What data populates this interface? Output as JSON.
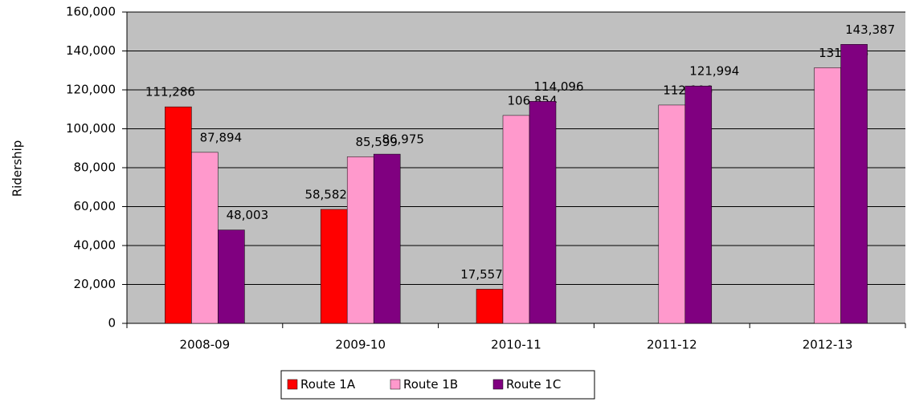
{
  "chart_data": {
    "type": "bar",
    "y_label": "Ridership",
    "categories": [
      "2008-09",
      "2009-10",
      "2010-11",
      "2011-12",
      "2012-13"
    ],
    "series": [
      {
        "name": "Route 1A",
        "color": "#ff0000",
        "values": [
          111286,
          58582,
          17557,
          null,
          null
        ],
        "value_labels": [
          "111,286",
          "58,582",
          "17,557",
          null,
          null
        ]
      },
      {
        "name": "Route 1B",
        "color": "#ff99cc",
        "values": [
          87894,
          85599,
          106854,
          112196,
          131376
        ],
        "value_labels": [
          "87,894",
          "85,599",
          "106,854",
          "112,196",
          "131,376"
        ]
      },
      {
        "name": "Route 1C",
        "color": "#800080",
        "values": [
          48003,
          86975,
          114096,
          121994,
          143387
        ],
        "value_labels": [
          "48,003",
          "86,975",
          "114,096",
          "121,994",
          "143,387"
        ]
      }
    ],
    "ylim": [
      0,
      160000
    ],
    "yticks": [
      0,
      {
        "value": 20000,
        "label": "20,000"
      },
      {
        "value": 40000,
        "label": "40,000"
      },
      {
        "value": 60000,
        "label": "60,000"
      },
      {
        "value": 80000,
        "label": "80,000"
      },
      {
        "value": 100000,
        "label": "100,000"
      },
      {
        "value": 120000,
        "label": "120,000"
      },
      {
        "value": 140000,
        "label": "140,000"
      },
      {
        "value": 160000,
        "label": "160,000"
      }
    ],
    "grid": true,
    "legend": "bottom",
    "background": "#c0c0c0"
  }
}
